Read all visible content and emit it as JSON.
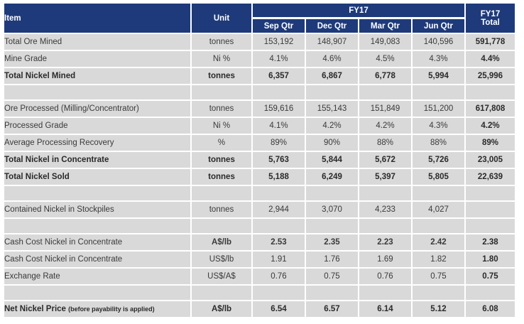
{
  "header": {
    "item": "Item",
    "unit": "Unit",
    "fy17": "FY17",
    "quarters": [
      "Sep Qtr",
      "Dec Qtr",
      "Mar Qtr",
      "Jun Qtr"
    ],
    "total_line1": "FY17",
    "total_line2": "Total"
  },
  "rows": [
    {
      "type": "data",
      "bold": false,
      "item": "Total Ore Mined",
      "unit": "tonnes",
      "q": [
        "153,192",
        "148,907",
        "149,083",
        "140,596"
      ],
      "total": "591,778"
    },
    {
      "type": "data",
      "bold": false,
      "item": "Mine Grade",
      "unit": "Ni %",
      "q": [
        "4.1%",
        "4.6%",
        "4.5%",
        "4.3%"
      ],
      "total": "4.4%"
    },
    {
      "type": "data",
      "bold": true,
      "item": "Total Nickel Mined",
      "unit": "tonnes",
      "q": [
        "6,357",
        "6,867",
        "6,778",
        "5,994"
      ],
      "total": "25,996"
    },
    {
      "type": "blank"
    },
    {
      "type": "data",
      "bold": false,
      "item": "Ore Processed (Milling/Concentrator)",
      "unit": "tonnes",
      "q": [
        "159,616",
        "155,143",
        "151,849",
        "151,200"
      ],
      "total": "617,808"
    },
    {
      "type": "data",
      "bold": false,
      "item": "Processed Grade",
      "unit": "Ni %",
      "q": [
        "4.1%",
        "4.2%",
        "4.2%",
        "4.3%"
      ],
      "total": "4.2%"
    },
    {
      "type": "data",
      "bold": false,
      "item": "Average Processing Recovery",
      "unit": "%",
      "q": [
        "89%",
        "90%",
        "88%",
        "88%"
      ],
      "total": "89%"
    },
    {
      "type": "data",
      "bold": true,
      "item": "Total Nickel in Concentrate",
      "unit": "tonnes",
      "q": [
        "5,763",
        "5,844",
        "5,672",
        "5,726"
      ],
      "total": "23,005"
    },
    {
      "type": "data",
      "bold": true,
      "item": "Total Nickel Sold",
      "unit": "tonnes",
      "q": [
        "5,188",
        "6,249",
        "5,397",
        "5,805"
      ],
      "total": "22,639"
    },
    {
      "type": "blank"
    },
    {
      "type": "data",
      "bold": false,
      "item": "Contained Nickel in Stockpiles",
      "unit": "tonnes",
      "q": [
        "2,944",
        "3,070",
        "4,233",
        "4,027"
      ],
      "total": ""
    },
    {
      "type": "blank"
    },
    {
      "type": "data",
      "bold": false,
      "boldunit": true,
      "boldnums": true,
      "item": "Cash Cost Nickel in Concentrate",
      "unit": "A$/lb",
      "q": [
        "2.53",
        "2.35",
        "2.23",
        "2.42"
      ],
      "total": "2.38"
    },
    {
      "type": "data",
      "bold": false,
      "item": "Cash Cost Nickel in Concentrate",
      "unit": "US$/lb",
      "q": [
        "1.91",
        "1.76",
        "1.69",
        "1.82"
      ],
      "total": "1.80"
    },
    {
      "type": "data",
      "bold": false,
      "item": "Exchange Rate",
      "unit": "US$/A$",
      "q": [
        "0.76",
        "0.75",
        "0.76",
        "0.75"
      ],
      "total": "0.75"
    },
    {
      "type": "blank"
    },
    {
      "type": "data",
      "bold": true,
      "item": "Net Nickel Price",
      "note": "(before payability is applied)",
      "unit": "A$/lb",
      "q": [
        "6.54",
        "6.57",
        "6.14",
        "5.12"
      ],
      "total": "6.08"
    }
  ]
}
